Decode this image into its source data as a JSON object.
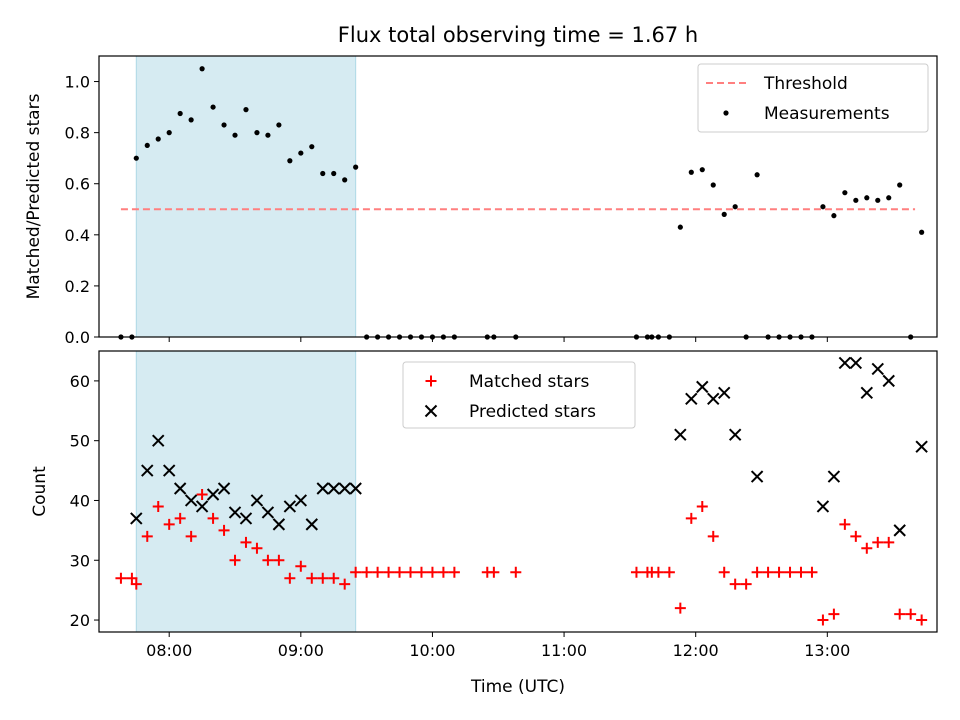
{
  "figure": {
    "title": "Flux total observing time = 1.67 h"
  },
  "chart_data": [
    {
      "type": "scatter",
      "ylabel": "Matched/Predicted stars",
      "xlabel": "",
      "xlim": [
        "07:28",
        "13:50"
      ],
      "ylim": [
        0,
        1.1
      ],
      "yticks": [
        0.0,
        0.2,
        0.4,
        0.6,
        0.8,
        1.0
      ],
      "ytick_labels": [
        "0.0",
        "0.2",
        "0.4",
        "0.6",
        "0.8",
        "1.0"
      ],
      "xticks": [
        "08:00",
        "09:00",
        "10:00",
        "11:00",
        "12:00",
        "13:00"
      ],
      "xtick_labels_shown": false,
      "grid": false,
      "legend_location": "upper right",
      "shaded_interval": {
        "start": "07:45",
        "end": "09:25",
        "color": "#add8e6"
      },
      "series": [
        {
          "name": "Threshold",
          "kind": "dashed-line",
          "color": "#ff7f7f",
          "x": [
            "07:38",
            "13:40"
          ],
          "y": [
            0.5,
            0.5
          ]
        },
        {
          "name": "Measurements",
          "kind": "scatter",
          "color": "#000000",
          "x": [
            "07:38",
            "07:43",
            "07:45",
            "07:50",
            "07:55",
            "08:00",
            "08:05",
            "08:10",
            "08:15",
            "08:20",
            "08:25",
            "08:30",
            "08:35",
            "08:40",
            "08:45",
            "08:50",
            "08:55",
            "09:00",
            "09:05",
            "09:10",
            "09:15",
            "09:20",
            "09:25",
            "09:30",
            "09:35",
            "09:40",
            "09:45",
            "09:50",
            "09:55",
            "10:00",
            "10:05",
            "10:10",
            "10:25",
            "10:28",
            "10:38",
            "11:33",
            "11:38",
            "11:40",
            "11:43",
            "11:48",
            "11:53",
            "11:58",
            "12:03",
            "12:08",
            "12:13",
            "12:18",
            "12:23",
            "12:28",
            "12:33",
            "12:38",
            "12:43",
            "12:48",
            "12:53",
            "12:58",
            "13:03",
            "13:08",
            "13:13",
            "13:18",
            "13:23",
            "13:28",
            "13:33",
            "13:38",
            "13:43"
          ],
          "y": [
            0.0,
            0.0,
            0.7,
            0.75,
            0.775,
            0.8,
            0.875,
            0.85,
            1.05,
            0.9,
            0.83,
            0.79,
            0.89,
            0.8,
            0.79,
            0.83,
            0.69,
            0.72,
            0.745,
            0.64,
            0.64,
            0.615,
            0.665,
            0.0,
            0.0,
            0.0,
            0.0,
            0.0,
            0.0,
            0.0,
            0.0,
            0.0,
            0.0,
            0.0,
            0.0,
            0.0,
            0.0,
            0.0,
            0.0,
            0.0,
            0.43,
            0.645,
            0.655,
            0.595,
            0.48,
            0.51,
            0.0,
            0.635,
            0.0,
            0.0,
            0.0,
            0.0,
            0.0,
            0.51,
            0.475,
            0.565,
            0.535,
            0.545,
            0.535,
            0.545,
            0.595,
            0.0,
            0.41
          ]
        }
      ]
    },
    {
      "type": "scatter",
      "ylabel": "Count",
      "xlabel": "Time (UTC)",
      "xlim": [
        "07:28",
        "13:50"
      ],
      "ylim": [
        18,
        65
      ],
      "yticks": [
        20,
        30,
        40,
        50,
        60
      ],
      "ytick_labels": [
        "20",
        "30",
        "40",
        "50",
        "60"
      ],
      "xticks": [
        "08:00",
        "09:00",
        "10:00",
        "11:00",
        "12:00",
        "13:00"
      ],
      "xtick_labels": [
        "08:00",
        "09:00",
        "10:00",
        "11:00",
        "12:00",
        "13:00"
      ],
      "grid": false,
      "legend_location": "upper center",
      "shaded_interval": {
        "start": "07:45",
        "end": "09:25",
        "color": "#add8e6"
      },
      "series": [
        {
          "name": "Matched stars",
          "kind": "plus",
          "color": "#ff0000",
          "x": [
            "07:38",
            "07:43",
            "07:45",
            "07:50",
            "07:55",
            "08:00",
            "08:05",
            "08:10",
            "08:15",
            "08:20",
            "08:25",
            "08:30",
            "08:35",
            "08:40",
            "08:45",
            "08:50",
            "08:55",
            "09:00",
            "09:05",
            "09:10",
            "09:15",
            "09:20",
            "09:25",
            "09:30",
            "09:35",
            "09:40",
            "09:45",
            "09:50",
            "09:55",
            "10:00",
            "10:05",
            "10:10",
            "10:25",
            "10:28",
            "10:38",
            "11:33",
            "11:38",
            "11:40",
            "11:43",
            "11:48",
            "11:53",
            "11:58",
            "12:03",
            "12:08",
            "12:13",
            "12:18",
            "12:23",
            "12:28",
            "12:33",
            "12:38",
            "12:43",
            "12:48",
            "12:53",
            "12:58",
            "13:03",
            "13:08",
            "13:13",
            "13:18",
            "13:23",
            "13:28",
            "13:33",
            "13:38",
            "13:43"
          ],
          "y": [
            27,
            27,
            26,
            34,
            39,
            36,
            37,
            34,
            41,
            37,
            35,
            30,
            33,
            32,
            30,
            30,
            27,
            29,
            27,
            27,
            27,
            26,
            28,
            28,
            28,
            28,
            28,
            28,
            28,
            28,
            28,
            28,
            28,
            28,
            28,
            28,
            28,
            28,
            28,
            28,
            22,
            37,
            39,
            34,
            28,
            26,
            26,
            28,
            28,
            28,
            28,
            28,
            28,
            20,
            21,
            36,
            34,
            32,
            33,
            33,
            21,
            21,
            20
          ]
        },
        {
          "name": "Predicted stars",
          "kind": "x",
          "color": "#000000",
          "x": [
            "07:45",
            "07:50",
            "07:55",
            "08:00",
            "08:05",
            "08:10",
            "08:15",
            "08:20",
            "08:25",
            "08:30",
            "08:35",
            "08:40",
            "08:45",
            "08:50",
            "08:55",
            "09:00",
            "09:05",
            "09:10",
            "09:15",
            "09:20",
            "09:25",
            "11:53",
            "11:58",
            "12:03",
            "12:08",
            "12:13",
            "12:18",
            "12:28",
            "12:58",
            "13:03",
            "13:08",
            "13:13",
            "13:18",
            "13:23",
            "13:28",
            "13:33",
            "13:43"
          ],
          "y": [
            37,
            45,
            50,
            45,
            42,
            40,
            39,
            41,
            42,
            38,
            37,
            40,
            38,
            36,
            39,
            40,
            36,
            42,
            42,
            42,
            42,
            51,
            57,
            59,
            57,
            58,
            51,
            44,
            39,
            44,
            63,
            63,
            58,
            62,
            60,
            35,
            49
          ]
        }
      ]
    }
  ]
}
